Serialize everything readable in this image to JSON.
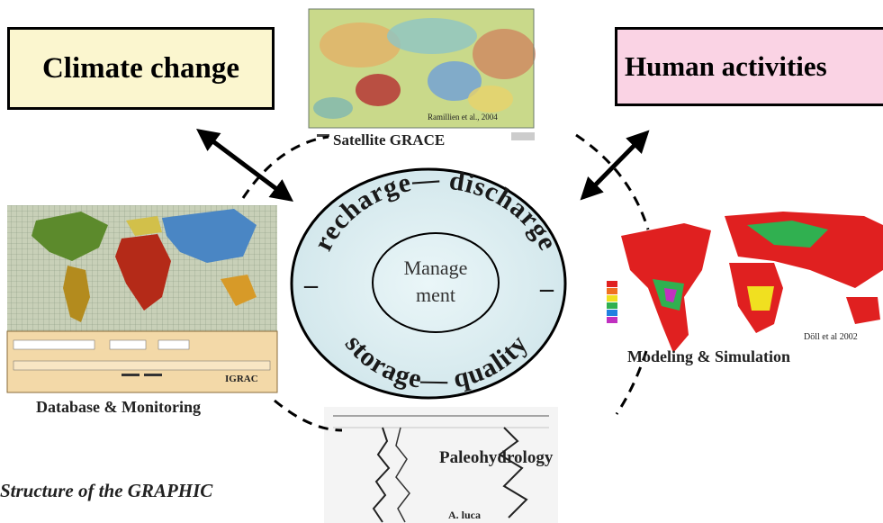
{
  "boxes": {
    "climate": "Climate change",
    "human": "Human activities"
  },
  "captions": {
    "grace": "Satellite GRACE",
    "grace_credit": "Ramillien et al., 2004",
    "modeling": "Modeling & Simulation",
    "modeling_credit": "Döll et al 2002",
    "database": "Database & Monitoring",
    "database_credit": "IGRAC",
    "paleo": "Paleohydrology",
    "paleo_core": "A. luca",
    "structure": "Structure of the GRAPHIC"
  },
  "center": {
    "arc_top": "recharge— discharge",
    "arc_bottom": "storage— quality",
    "arc_left": "–",
    "arc_right": "–",
    "inner_line1": "Manage",
    "inner_line2": "ment"
  },
  "colors": {
    "ellipse_fill": "#d8ecf0",
    "climate_fill": "#fbf6cf",
    "human_fill": "#fad3e4",
    "db_panel": "#f3d9a8"
  }
}
